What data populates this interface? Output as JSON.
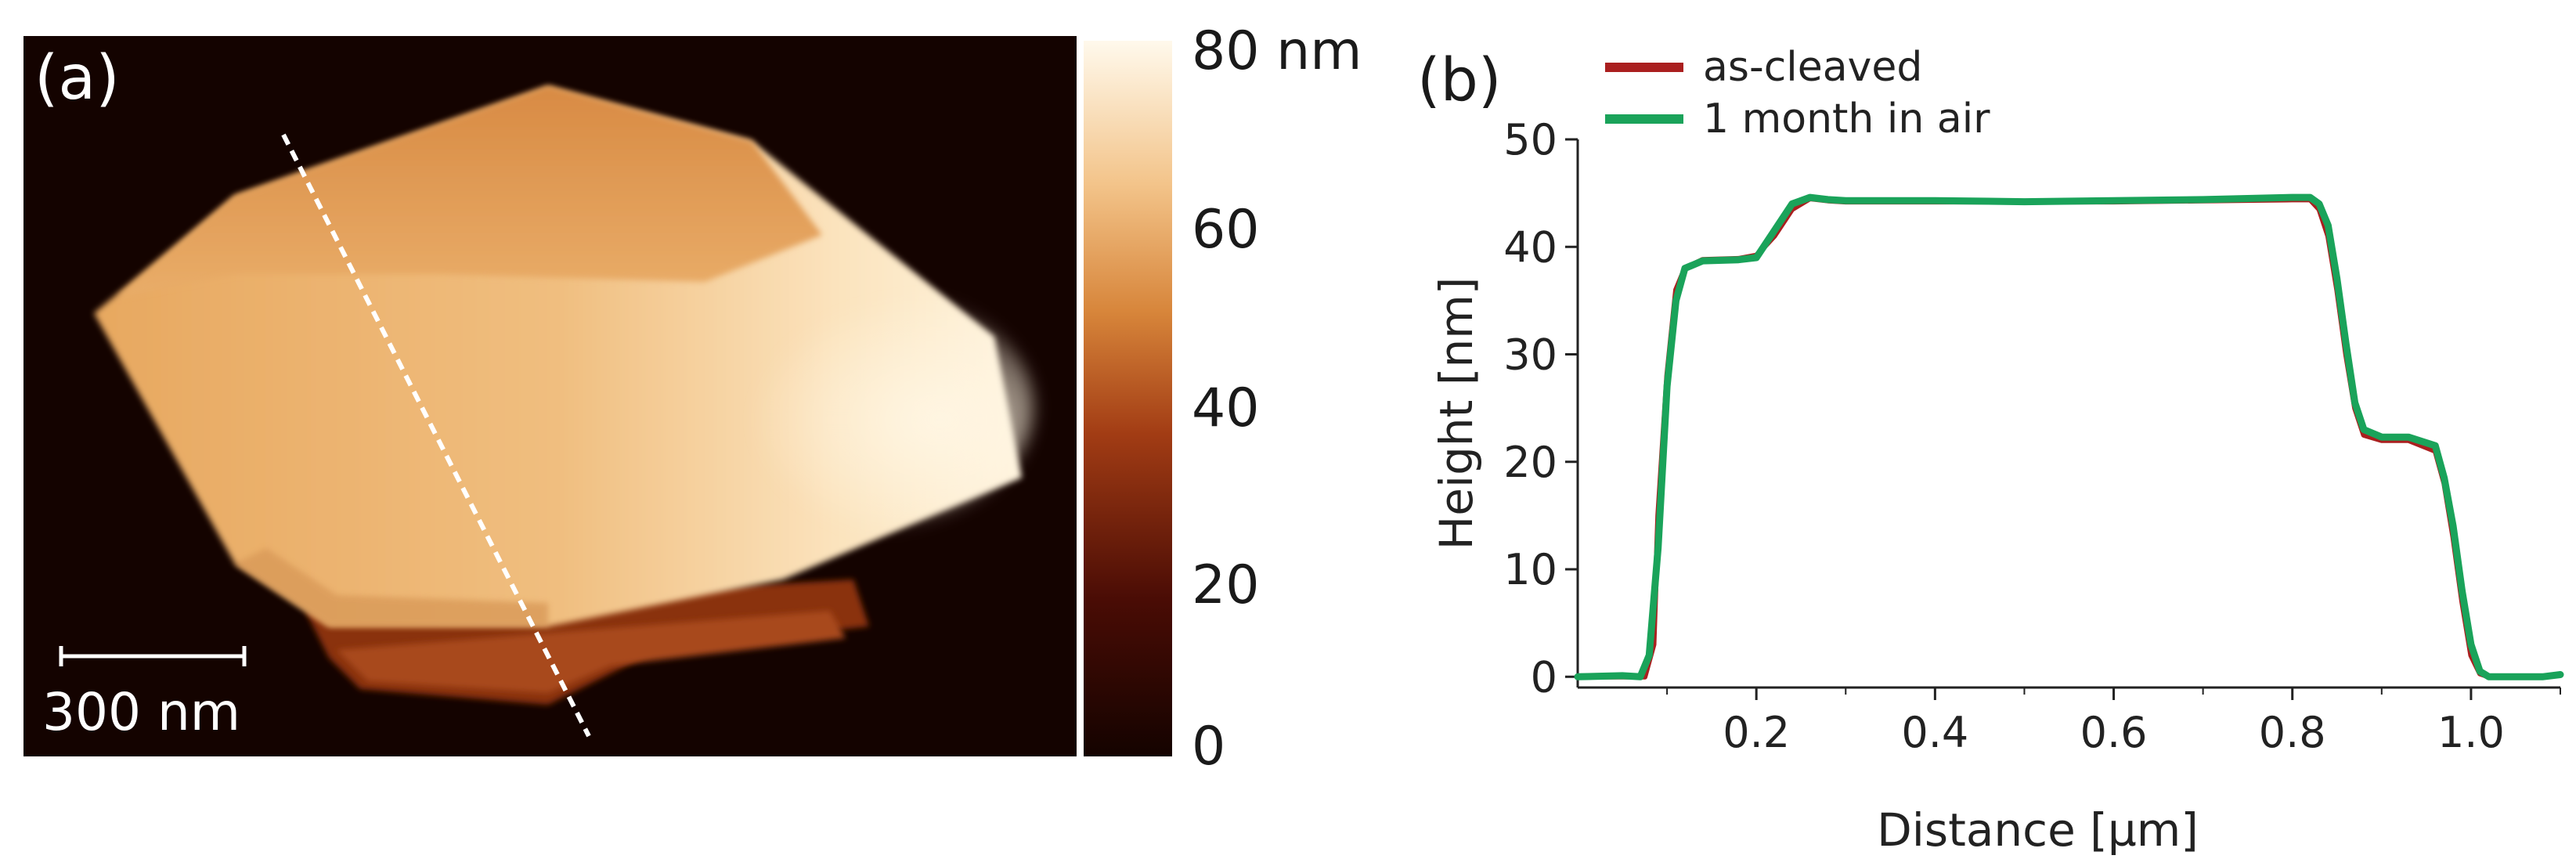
{
  "panel_a": {
    "label": "(a)",
    "scale_bar_label": "300 nm",
    "colorbar_ticks": [
      "80 nm",
      "60",
      "40",
      "20",
      "0"
    ]
  },
  "panel_b": {
    "label": "(b)"
  },
  "chart_data": [
    {
      "type": "heatmap",
      "description_label": "(a)",
      "zlim": [
        0,
        80
      ],
      "z_unit": "nm",
      "colorbar_tick_labels": [
        "80 nm",
        "60",
        "40",
        "20",
        "0"
      ],
      "scale_bar": "300 nm",
      "colors": {
        "background": "#140300",
        "low": "#4a0c05",
        "mid": "#c0692c",
        "high": "#fff7e3"
      }
    },
    {
      "type": "line",
      "description_label": "(b)",
      "title": "",
      "xlabel": "Distance [µm]",
      "ylabel": "Height [nm]",
      "xlim": [
        0.0,
        1.1
      ],
      "ylim": [
        -1,
        50
      ],
      "xticks": [
        0.2,
        0.4,
        0.6,
        0.8,
        1.0
      ],
      "xtick_labels": [
        "0.2",
        "0.4",
        "0.6",
        "0.8",
        "1.0"
      ],
      "yticks": [
        0,
        10,
        20,
        30,
        40,
        50
      ],
      "ytick_labels": [
        "0",
        "10",
        "20",
        "30",
        "40",
        "50"
      ],
      "legend_position": "top-left",
      "series": [
        {
          "name": "as-cleaved",
          "color": "#aa1f1f",
          "x": [
            0.0,
            0.05,
            0.075,
            0.085,
            0.09,
            0.1,
            0.11,
            0.12,
            0.14,
            0.18,
            0.2,
            0.22,
            0.24,
            0.26,
            0.28,
            0.3,
            0.4,
            0.5,
            0.6,
            0.7,
            0.8,
            0.82,
            0.83,
            0.84,
            0.85,
            0.86,
            0.87,
            0.88,
            0.9,
            0.93,
            0.96,
            0.97,
            0.98,
            0.99,
            1.0,
            1.01,
            1.02,
            1.04,
            1.08,
            1.1
          ],
          "y": [
            0,
            0,
            0,
            3,
            15,
            28,
            36,
            38,
            38.8,
            38.9,
            39.2,
            41,
            43.5,
            44.5,
            44.3,
            44.2,
            44.2,
            44.2,
            44.2,
            44.3,
            44.4,
            44.4,
            43.5,
            41,
            36,
            30,
            25,
            22.5,
            22,
            22,
            21,
            18,
            13,
            7,
            2,
            0.3,
            0,
            0,
            0,
            0.2
          ]
        },
        {
          "name": "1 month in air",
          "color": "#1aa35a",
          "x": [
            0.0,
            0.05,
            0.07,
            0.08,
            0.09,
            0.1,
            0.11,
            0.12,
            0.14,
            0.18,
            0.2,
            0.22,
            0.24,
            0.26,
            0.28,
            0.3,
            0.4,
            0.5,
            0.6,
            0.7,
            0.8,
            0.82,
            0.83,
            0.84,
            0.85,
            0.86,
            0.87,
            0.88,
            0.9,
            0.93,
            0.96,
            0.97,
            0.98,
            0.99,
            1.0,
            1.01,
            1.02,
            1.04,
            1.08,
            1.1
          ],
          "y": [
            0,
            0.1,
            0,
            2,
            12,
            27,
            35,
            38,
            38.7,
            38.8,
            39,
            41.5,
            44,
            44.6,
            44.4,
            44.3,
            44.3,
            44.2,
            44.3,
            44.4,
            44.6,
            44.6,
            44,
            42,
            37,
            31,
            25.5,
            23,
            22.3,
            22.3,
            21.5,
            18.5,
            14,
            8,
            3,
            0.5,
            0,
            0,
            0,
            0.2
          ]
        }
      ]
    }
  ]
}
